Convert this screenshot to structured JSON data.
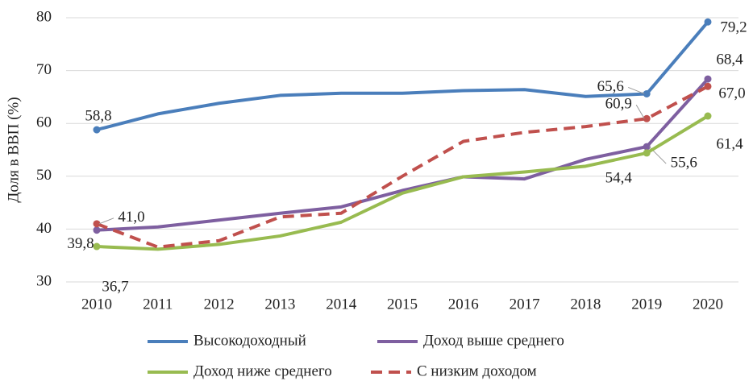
{
  "chart_data": {
    "type": "line",
    "y_label": "Доля в ВВП (%)",
    "categories": [
      "2010",
      "2011",
      "2012",
      "2013",
      "2014",
      "2015",
      "2016",
      "2017",
      "2018",
      "2019",
      "2020"
    ],
    "ylim": [
      30,
      80
    ],
    "yticks": [
      30,
      40,
      50,
      60,
      70,
      80
    ],
    "grid": true,
    "legend": "bottom",
    "series": [
      {
        "name": "Высокодоходный",
        "color": "#4a7ebb",
        "dash": false,
        "values": [
          58.8,
          61.8,
          63.8,
          65.3,
          65.7,
          65.7,
          66.2,
          66.4,
          65.1,
          65.6,
          79.2
        ],
        "value_labels": [
          "58,8",
          null,
          null,
          null,
          null,
          null,
          null,
          null,
          null,
          "65,6",
          "79,2"
        ]
      },
      {
        "name": "Доход выше среднего",
        "color": "#7e5fa0",
        "dash": false,
        "values": [
          39.8,
          40.4,
          41.7,
          43.0,
          44.2,
          47.3,
          49.9,
          49.5,
          53.2,
          55.6,
          68.4
        ],
        "value_labels": [
          "39,8",
          null,
          null,
          null,
          null,
          null,
          null,
          null,
          null,
          "55,6",
          "68,4"
        ]
      },
      {
        "name": "Доход ниже среднего",
        "color": "#98bb50",
        "dash": false,
        "values": [
          36.7,
          36.2,
          37.1,
          38.7,
          41.3,
          46.8,
          49.9,
          50.8,
          51.9,
          54.4,
          61.4
        ],
        "value_labels": [
          "36,7",
          null,
          null,
          null,
          null,
          null,
          null,
          null,
          null,
          "54,4",
          "61,4"
        ]
      },
      {
        "name": "С низким доходом",
        "color": "#c0504d",
        "dash": true,
        "values": [
          41.0,
          36.6,
          37.8,
          42.3,
          43.0,
          50.0,
          56.6,
          58.3,
          59.4,
          60.9,
          67.0
        ],
        "value_labels": [
          "41,0",
          null,
          null,
          null,
          null,
          null,
          null,
          null,
          null,
          "60,9",
          "67,0"
        ]
      }
    ]
  }
}
